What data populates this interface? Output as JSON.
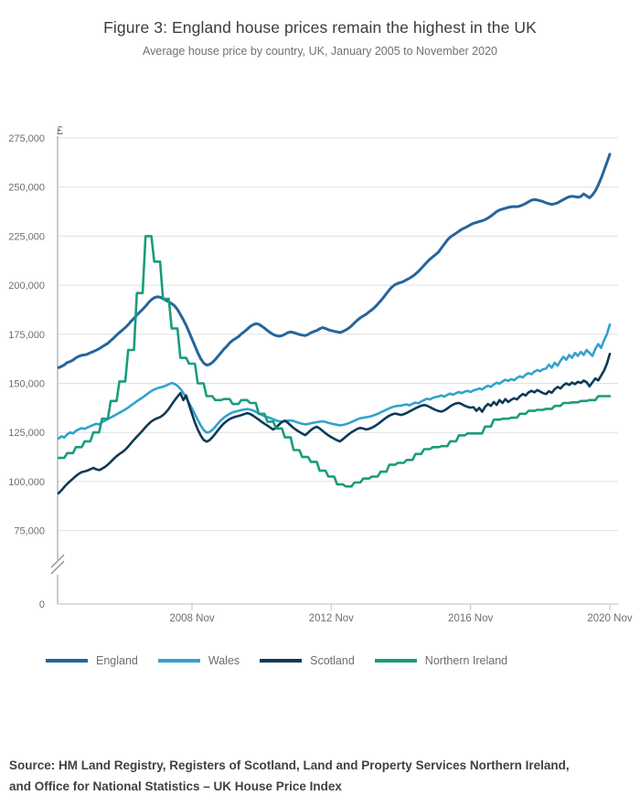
{
  "title": "Figure 3: England house prices remain the highest in the UK",
  "subtitle": "Average house price by country, UK, January 2005 to November 2020",
  "source": {
    "line1": "Source: HM Land Registry, Registers of Scotland, Land and Property Services Northern Ireland,",
    "line2": "and Office for National Statistics – UK House Price Index"
  },
  "chart_data": {
    "type": "line",
    "title": "Figure 3: England house prices remain the highest in the UK",
    "subtitle": "Average house price by country, UK, January 2005 to November 2020",
    "unit": "GBP thousands",
    "currency_symbol": "£",
    "x_start": "2005 Jan",
    "x_end": "2020 Nov",
    "x_ticks": [
      {
        "label": "2008 Nov",
        "month_index": 46
      },
      {
        "label": "2012 Nov",
        "month_index": 94
      },
      {
        "label": "2016 Nov",
        "month_index": 142
      },
      {
        "label": "2020 Nov",
        "month_index": 190
      }
    ],
    "y_ticks": [
      {
        "value": 275,
        "label": "275,000"
      },
      {
        "value": 250,
        "label": "250,000"
      },
      {
        "value": 225,
        "label": "225,000"
      },
      {
        "value": 200,
        "label": "200,000"
      },
      {
        "value": 175,
        "label": "175,000"
      },
      {
        "value": 150,
        "label": "150,000"
      },
      {
        "value": 125,
        "label": "125,000"
      },
      {
        "value": 100,
        "label": "100,000"
      },
      {
        "value": 75,
        "label": "75,000"
      }
    ],
    "y_zero_label": "0",
    "y_axis_break": true,
    "ylim_k": [
      0,
      275
    ],
    "grid": true,
    "legend_position": "bottom",
    "series": [
      {
        "name": "England",
        "color": "#26659b",
        "values": [
          158.0,
          158.6,
          159.4,
          160.6,
          161.1,
          161.9,
          163.0,
          163.8,
          164.3,
          164.5,
          164.9,
          165.6,
          166.2,
          166.9,
          167.6,
          168.6,
          169.5,
          170.4,
          171.8,
          173.1,
          174.6,
          175.9,
          177.1,
          178.4,
          179.9,
          181.6,
          183.1,
          184.8,
          186.3,
          187.7,
          189.3,
          191.1,
          192.6,
          193.6,
          194.1,
          193.9,
          193.1,
          192.3,
          191.6,
          190.6,
          189.5,
          187.6,
          185.1,
          182.4,
          179.6,
          176.1,
          172.6,
          169.1,
          165.6,
          162.6,
          160.4,
          159.3,
          159.6,
          160.6,
          162.1,
          163.9,
          165.6,
          167.4,
          168.9,
          170.6,
          171.9,
          172.8,
          173.8,
          175.2,
          176.3,
          177.5,
          178.9,
          179.8,
          180.4,
          180.1,
          179.2,
          178.1,
          176.9,
          175.8,
          174.9,
          174.3,
          174.0,
          174.3,
          175.0,
          175.8,
          176.2,
          175.9,
          175.4,
          174.9,
          174.6,
          174.3,
          174.9,
          175.8,
          176.4,
          176.9,
          177.8,
          178.4,
          178.0,
          177.3,
          176.9,
          176.5,
          176.2,
          175.9,
          176.4,
          177.2,
          178.1,
          179.3,
          180.8,
          182.2,
          183.4,
          184.3,
          185.2,
          186.4,
          187.5,
          188.8,
          190.3,
          192.0,
          193.8,
          195.7,
          197.6,
          199.2,
          200.3,
          201.0,
          201.4,
          202.0,
          202.8,
          203.6,
          204.5,
          205.7,
          207.0,
          208.5,
          210.2,
          211.8,
          213.2,
          214.5,
          215.7,
          217.0,
          219.0,
          221.0,
          223.0,
          224.5,
          225.5,
          226.5,
          227.5,
          228.5,
          229.2,
          230.0,
          230.8,
          231.5,
          232.0,
          232.4,
          232.8,
          233.4,
          234.2,
          235.2,
          236.3,
          237.5,
          238.3,
          238.8,
          239.2,
          239.6,
          239.9,
          240.1,
          240.0,
          240.3,
          240.9,
          241.6,
          242.5,
          243.3,
          243.6,
          243.4,
          243.0,
          242.6,
          242.0,
          241.5,
          241.2,
          241.5,
          242.0,
          242.8,
          243.6,
          244.4,
          245.0,
          245.3,
          245.1,
          244.8,
          245.2,
          246.5,
          245.5,
          244.5,
          246.0,
          248.0,
          251.0,
          254.5,
          258.5,
          262.5,
          266.7
        ]
      },
      {
        "name": "Wales",
        "color": "#32a2cc",
        "values": [
          121.9,
          123.0,
          122.4,
          124.0,
          125.0,
          124.5,
          125.8,
          126.6,
          127.2,
          126.8,
          127.5,
          128.2,
          128.8,
          129.4,
          129.0,
          130.2,
          131.0,
          131.8,
          132.6,
          133.4,
          134.2,
          135.0,
          135.8,
          136.7,
          137.7,
          138.8,
          139.8,
          140.9,
          141.9,
          142.8,
          143.9,
          145.1,
          146.1,
          146.9,
          147.5,
          147.9,
          148.3,
          148.9,
          149.6,
          150.2,
          149.7,
          148.8,
          147.2,
          145.1,
          142.7,
          140.0,
          137.2,
          134.3,
          131.4,
          128.6,
          126.3,
          124.9,
          125.2,
          126.3,
          127.9,
          129.6,
          131.2,
          132.6,
          133.6,
          134.5,
          135.2,
          135.6,
          136.0,
          136.4,
          136.7,
          136.9,
          136.7,
          136.2,
          135.5,
          134.7,
          133.9,
          133.3,
          132.8,
          132.3,
          131.7,
          131.1,
          130.7,
          130.5,
          130.7,
          131.0,
          131.1,
          130.8,
          130.3,
          129.8,
          129.4,
          129.1,
          129.3,
          129.7,
          130.0,
          130.2,
          130.5,
          130.7,
          130.4,
          129.9,
          129.5,
          129.2,
          128.9,
          128.6,
          128.8,
          129.2,
          129.7,
          130.3,
          131.0,
          131.7,
          132.2,
          132.5,
          132.7,
          133.0,
          133.4,
          133.9,
          134.5,
          135.2,
          135.9,
          136.6,
          137.3,
          137.9,
          138.3,
          138.5,
          138.7,
          139.0,
          139.3,
          138.8,
          139.6,
          140.2,
          139.8,
          140.8,
          141.5,
          142.2,
          141.8,
          142.6,
          143.0,
          143.4,
          143.8,
          143.2,
          144.2,
          144.8,
          144.2,
          145.0,
          145.6,
          145.0,
          145.8,
          146.2,
          145.6,
          146.4,
          146.8,
          147.4,
          146.9,
          148.0,
          148.8,
          148.2,
          149.5,
          150.3,
          149.8,
          151.0,
          151.8,
          151.2,
          152.2,
          151.6,
          152.8,
          153.6,
          153.0,
          154.4,
          155.2,
          154.6,
          156.0,
          156.8,
          156.2,
          157.2,
          157.5,
          159.5,
          158.0,
          160.5,
          159.0,
          161.5,
          163.5,
          162.0,
          164.5,
          163.0,
          165.5,
          164.0,
          166.0,
          164.5,
          167.0,
          165.5,
          164.0,
          167.5,
          170.0,
          168.0,
          172.0,
          175.0,
          180.0
        ]
      },
      {
        "name": "Scotland",
        "color": "#0d3a57",
        "values": [
          94.0,
          95.5,
          97.2,
          98.8,
          100.2,
          101.5,
          102.8,
          103.9,
          104.8,
          105.1,
          105.6,
          106.3,
          106.9,
          106.2,
          105.8,
          106.5,
          107.4,
          108.6,
          110.0,
          111.5,
          112.9,
          114.0,
          115.0,
          116.2,
          117.8,
          119.5,
          121.2,
          122.8,
          124.4,
          126.0,
          127.7,
          129.3,
          130.6,
          131.5,
          132.2,
          132.8,
          133.8,
          135.2,
          137.0,
          139.2,
          141.3,
          143.2,
          145.0,
          141.5,
          143.8,
          139.0,
          134.5,
          130.0,
          126.5,
          123.5,
          121.2,
          120.3,
          121.0,
          122.5,
          124.3,
          126.2,
          128.0,
          129.6,
          130.8,
          131.8,
          132.5,
          133.0,
          133.4,
          133.8,
          134.3,
          134.8,
          134.4,
          133.6,
          132.6,
          131.5,
          130.4,
          129.4,
          128.5,
          127.4,
          126.5,
          127.5,
          129.0,
          130.3,
          131.0,
          130.0,
          128.6,
          127.3,
          126.2,
          125.3,
          124.4,
          123.6,
          124.8,
          126.2,
          127.3,
          127.9,
          127.0,
          125.8,
          124.6,
          123.5,
          122.6,
          121.8,
          121.0,
          120.4,
          121.5,
          122.8,
          124.0,
          125.1,
          126.0,
          126.8,
          127.3,
          127.0,
          126.5,
          126.8,
          127.4,
          128.2,
          129.2,
          130.3,
          131.5,
          132.6,
          133.5,
          134.2,
          134.6,
          134.3,
          133.9,
          134.3,
          134.9,
          135.7,
          136.5,
          137.3,
          138.0,
          138.6,
          139.0,
          138.6,
          137.9,
          137.1,
          136.4,
          135.9,
          135.6,
          136.2,
          137.2,
          138.3,
          139.2,
          139.8,
          140.0,
          139.4,
          138.6,
          138.0,
          137.6,
          137.9,
          136.0,
          137.5,
          135.5,
          138.0,
          139.5,
          138.5,
          140.5,
          139.0,
          141.5,
          140.0,
          142.0,
          140.5,
          141.6,
          142.4,
          141.8,
          143.4,
          144.6,
          143.8,
          145.4,
          146.2,
          145.4,
          146.6,
          145.8,
          145.0,
          144.5,
          146.0,
          145.2,
          147.0,
          148.2,
          147.4,
          149.0,
          150.0,
          149.2,
          150.4,
          149.6,
          150.8,
          150.2,
          151.4,
          150.6,
          148.5,
          150.5,
          152.5,
          151.5,
          154.0,
          156.5,
          160.0,
          165.0
        ]
      },
      {
        "name": "Northern Ireland",
        "color": "#199c7c",
        "values": [
          112.0,
          112.0,
          112.0,
          114.5,
          114.5,
          114.5,
          117.5,
          117.5,
          117.5,
          120.5,
          120.5,
          120.5,
          125.0,
          125.0,
          125.0,
          132.0,
          132.0,
          132.0,
          141.0,
          141.0,
          141.0,
          151.0,
          151.0,
          151.0,
          167.0,
          167.0,
          167.0,
          196.0,
          196.0,
          196.0,
          225.0,
          225.0,
          225.0,
          212.0,
          212.0,
          212.0,
          193.0,
          193.0,
          193.0,
          178.0,
          178.0,
          178.0,
          163.0,
          163.0,
          163.0,
          160.0,
          160.0,
          160.0,
          150.0,
          150.0,
          150.0,
          143.5,
          143.5,
          143.5,
          141.5,
          141.5,
          141.5,
          142.0,
          142.0,
          142.0,
          139.5,
          139.5,
          139.5,
          141.5,
          141.5,
          141.5,
          140.0,
          140.0,
          140.0,
          134.5,
          134.5,
          134.5,
          130.5,
          130.5,
          130.5,
          127.0,
          127.0,
          127.0,
          122.5,
          122.5,
          122.5,
          116.0,
          116.0,
          116.0,
          112.5,
          112.5,
          112.5,
          110.0,
          110.0,
          110.0,
          105.5,
          105.5,
          105.5,
          102.5,
          102.5,
          102.5,
          98.5,
          98.5,
          98.5,
          97.5,
          97.5,
          97.5,
          99.5,
          99.5,
          99.5,
          101.5,
          101.5,
          101.5,
          102.5,
          102.5,
          102.5,
          105.0,
          105.0,
          105.0,
          108.5,
          108.5,
          108.5,
          109.5,
          109.5,
          109.5,
          111.0,
          111.0,
          111.0,
          114.0,
          114.0,
          114.0,
          116.5,
          116.5,
          116.5,
          117.5,
          117.5,
          117.5,
          118.0,
          118.0,
          118.0,
          120.5,
          120.5,
          120.5,
          123.5,
          123.5,
          123.5,
          124.5,
          124.5,
          124.5,
          124.5,
          124.5,
          124.5,
          128.0,
          128.0,
          128.0,
          131.5,
          131.5,
          131.5,
          132.0,
          132.0,
          132.0,
          132.5,
          132.5,
          132.5,
          134.5,
          134.5,
          134.5,
          136.0,
          136.0,
          136.0,
          136.5,
          136.5,
          136.5,
          137.0,
          137.0,
          137.0,
          138.5,
          138.5,
          138.5,
          140.0,
          140.0,
          140.0,
          140.3,
          140.3,
          140.3,
          141.0,
          141.0,
          141.0,
          141.5,
          141.5,
          141.5,
          143.5,
          143.5,
          143.5,
          143.5,
          143.5
        ]
      }
    ],
    "colors": {
      "grid": "#e0e0e0",
      "y_axis": "#949494",
      "x_axis": "#c3ccd5",
      "tick_text": "#6e6e6e"
    }
  }
}
